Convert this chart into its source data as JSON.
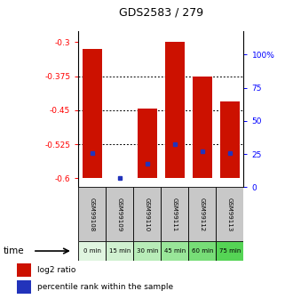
{
  "title": "GDS2583 / 279",
  "samples": [
    "GSM99108",
    "GSM99109",
    "GSM99110",
    "GSM99111",
    "GSM99112",
    "GSM99113"
  ],
  "time_labels": [
    "0 min",
    "15 min",
    "30 min",
    "45 min",
    "60 min",
    "75 min"
  ],
  "time_colors": [
    "#e0f5e0",
    "#d0f0d0",
    "#b8ecb8",
    "#99e699",
    "#77dd77",
    "#55d455"
  ],
  "bar_bottom": -0.6,
  "bar_tops": [
    -0.315,
    -0.599,
    -0.447,
    -0.3,
    -0.375,
    -0.43
  ],
  "blue_dot_values": [
    -0.545,
    -0.599,
    -0.568,
    -0.525,
    -0.54,
    -0.545
  ],
  "bar_color": "#cc1100",
  "blue_color": "#2233bb",
  "ylim_left": [
    -0.62,
    -0.275
  ],
  "ylim_right": [
    0,
    118
  ],
  "yticks_left": [
    -0.6,
    -0.525,
    -0.45,
    -0.375,
    -0.3
  ],
  "yticks_right": [
    0,
    25,
    50,
    75,
    100
  ],
  "ytick_labels_left": [
    "-0.6",
    "-0.525",
    "-0.45",
    "-0.375",
    "-0.3"
  ],
  "ytick_labels_right": [
    "0",
    "25",
    "50",
    "75",
    "100%"
  ],
  "grid_values": [
    -0.525,
    -0.45,
    -0.375
  ],
  "bar_width": 0.7,
  "sample_box_color": "#c8c8c8",
  "legend_bar_label": "log2 ratio",
  "legend_dot_label": "percentile rank within the sample"
}
